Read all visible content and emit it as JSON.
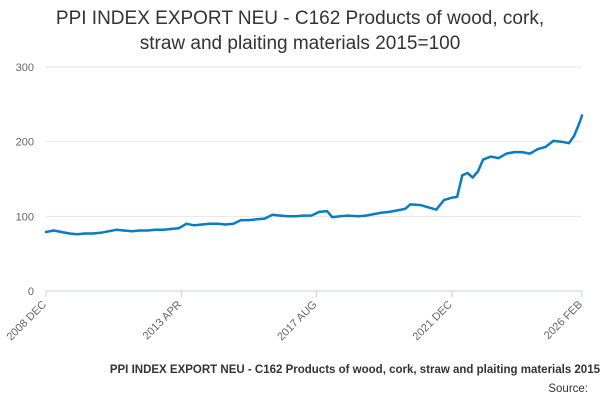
{
  "chart_data": {
    "type": "line",
    "title_line1": "PPI INDEX EXPORT NEU - C162 Products of wood, cork,",
    "title_line2": "straw and plaiting materials 2015=100",
    "footer_label": "PPI INDEX EXPORT NEU - C162 Products of wood, cork, straw and plaiting materials 2015",
    "source_label": "Source:",
    "xlabel": "",
    "ylabel": "",
    "ylim": [
      0,
      300
    ],
    "yticks": [
      0,
      100,
      200,
      300
    ],
    "xlim": [
      "2008-12",
      "2026-02"
    ],
    "xticks": [
      "2008 DEC",
      "2013 APR",
      "2017 AUG",
      "2021 DEC",
      "2026 FEB"
    ],
    "grid": "horizontal",
    "line_color": "#0a7dc2",
    "series": [
      {
        "points": [
          [
            "2008-12",
            79
          ],
          [
            "2009-03",
            81
          ],
          [
            "2009-06",
            79
          ],
          [
            "2009-09",
            77
          ],
          [
            "2009-12",
            76
          ],
          [
            "2010-03",
            77
          ],
          [
            "2010-06",
            77
          ],
          [
            "2010-09",
            78
          ],
          [
            "2010-12",
            80
          ],
          [
            "2011-03",
            82
          ],
          [
            "2011-06",
            81
          ],
          [
            "2011-09",
            80
          ],
          [
            "2011-12",
            81
          ],
          [
            "2012-03",
            81
          ],
          [
            "2012-06",
            82
          ],
          [
            "2012-09",
            82
          ],
          [
            "2012-12",
            83
          ],
          [
            "2013-03",
            84
          ],
          [
            "2013-06",
            90
          ],
          [
            "2013-09",
            88
          ],
          [
            "2013-12",
            89
          ],
          [
            "2014-03",
            90
          ],
          [
            "2014-06",
            90
          ],
          [
            "2014-09",
            89
          ],
          [
            "2014-12",
            90
          ],
          [
            "2015-03",
            95
          ],
          [
            "2015-06",
            95
          ],
          [
            "2015-09",
            96
          ],
          [
            "2015-12",
            97
          ],
          [
            "2016-03",
            102
          ],
          [
            "2016-06",
            101
          ],
          [
            "2016-09",
            100
          ],
          [
            "2016-12",
            100
          ],
          [
            "2017-03",
            101
          ],
          [
            "2017-06",
            101
          ],
          [
            "2017-09",
            106
          ],
          [
            "2017-12",
            107
          ],
          [
            "2018-02",
            99
          ],
          [
            "2018-05",
            100
          ],
          [
            "2018-08",
            101
          ],
          [
            "2018-12",
            100
          ],
          [
            "2019-03",
            101
          ],
          [
            "2019-06",
            103
          ],
          [
            "2019-09",
            105
          ],
          [
            "2019-12",
            106
          ],
          [
            "2020-03",
            108
          ],
          [
            "2020-06",
            110
          ],
          [
            "2020-08",
            116
          ],
          [
            "2020-12",
            115
          ],
          [
            "2021-03",
            112
          ],
          [
            "2021-06",
            109
          ],
          [
            "2021-09",
            122
          ],
          [
            "2021-12",
            125
          ],
          [
            "2022-02",
            126
          ],
          [
            "2022-04",
            155
          ],
          [
            "2022-06",
            158
          ],
          [
            "2022-08",
            152
          ],
          [
            "2022-10",
            160
          ],
          [
            "2022-12",
            176
          ],
          [
            "2023-03",
            180
          ],
          [
            "2023-06",
            178
          ],
          [
            "2023-09",
            184
          ],
          [
            "2023-12",
            186
          ],
          [
            "2024-03",
            186
          ],
          [
            "2024-06",
            184
          ],
          [
            "2024-09",
            190
          ],
          [
            "2024-12",
            193
          ],
          [
            "2025-03",
            201
          ],
          [
            "2025-06",
            200
          ],
          [
            "2025-09",
            198
          ],
          [
            "2025-11",
            208
          ],
          [
            "2026-01",
            225
          ],
          [
            "2026-02",
            235
          ]
        ]
      }
    ]
  }
}
